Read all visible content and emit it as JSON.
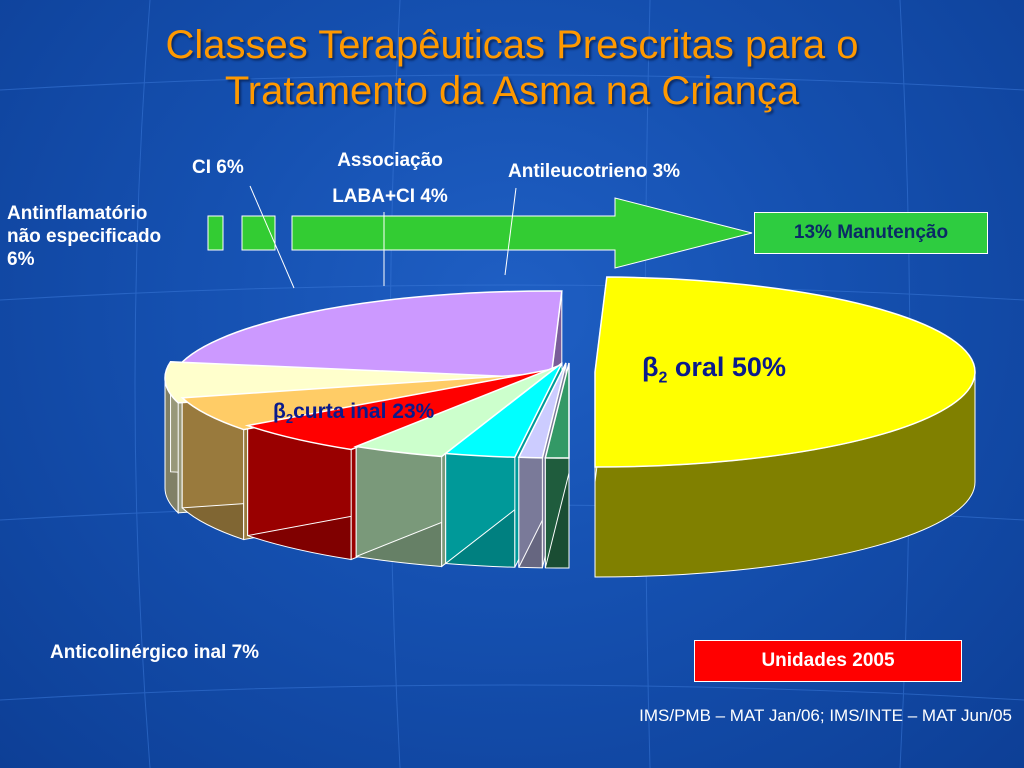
{
  "title_line1": "Classes Terapêuticas Prescritas  para o",
  "title_line2": "Tratamento da Asma na Criança",
  "labels": {
    "antiinflam_1": "Antinflamatório",
    "antiinflam_2": "não especificado",
    "antiinflam_3": "6%",
    "ci": "CI 6%",
    "assoc_1": "Associação",
    "assoc_2": "LABA+CI 4%",
    "antileuco": "Antileucotrieno 3%",
    "anticol": "Anticolinérgico inal 7%"
  },
  "maintenance_box": "13% Manutenção",
  "units_box": "Unidades 2005",
  "source": "IMS/PMB – MAT Jan/06; IMS/INTE – MAT Jun/05",
  "chart_data": {
    "type": "pie",
    "title": "Classes Terapêuticas Prescritas  para o Tratamento da Asma na Criança",
    "slices": [
      {
        "label": "β2 oral",
        "value": 50,
        "color": "#ffff00"
      },
      {
        "label": "β2 curta inal",
        "value": 23,
        "color": "#cc99ff"
      },
      {
        "label": "Anticolinérgico inal",
        "value": 7,
        "color": "#ffffcc"
      },
      {
        "label": "Antinflamatório não especificado",
        "value": 6,
        "color": "#ffcc66"
      },
      {
        "label": "CI",
        "value": 6,
        "color": "#ff0000"
      },
      {
        "label": "Associação LABA+CI",
        "value": 4,
        "color": "#ccffcc"
      },
      {
        "label": "Antileucotrieno",
        "value": 3,
        "color": "#00ffff"
      },
      {
        "label": "",
        "value": 1,
        "color": "#ccccff"
      },
      {
        "label": "",
        "value": 1,
        "color": "#339966"
      }
    ],
    "slice_texts": {
      "b2_oral_symbol": "β",
      "b2_oral_sub": "2",
      "b2_oral_text": " oral 50%",
      "b2_curta_symbol": "β",
      "b2_curta_sub": "2",
      "b2_curta_text": "curta inal 23%"
    },
    "colors": {
      "title": "#ff9900",
      "arrow": "#33cc33",
      "maintenance_box": "#2ecc40",
      "units_box": "#ff0000"
    }
  }
}
